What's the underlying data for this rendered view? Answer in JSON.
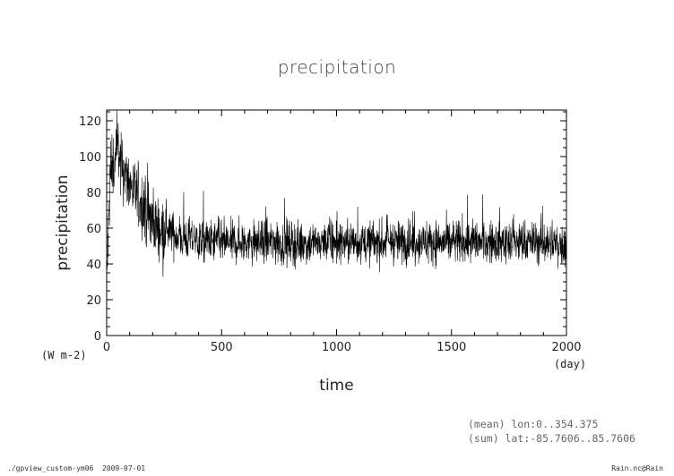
{
  "chart_data": {
    "type": "line",
    "title": "precipitation",
    "xlabel": "time",
    "ylabel": "precipitation",
    "x_unit": "(day)",
    "y_unit": "(W m-2)",
    "xlim": [
      0,
      2000
    ],
    "ylim": [
      0,
      126
    ],
    "xticks": [
      0,
      500,
      1000,
      1500,
      2000
    ],
    "yticks": [
      0,
      20,
      40,
      60,
      80,
      100,
      120
    ],
    "grid": false,
    "series": [
      {
        "color": "#000000",
        "x": [
          0,
          15,
          30,
          45,
          60,
          80,
          100,
          120,
          140,
          160,
          180,
          200,
          230,
          260,
          300,
          350,
          400,
          500,
          600,
          700,
          800,
          900,
          1000,
          1100,
          1200,
          1300,
          1400,
          1500,
          1600,
          1700,
          1800,
          1900,
          2000
        ],
        "y": [
          28,
          88,
          95,
          105,
          98,
          90,
          85,
          80,
          76,
          72,
          68,
          64,
          60,
          58,
          56,
          54,
          53,
          52,
          52,
          52,
          51,
          52,
          52,
          52,
          52,
          52,
          52,
          52,
          52,
          52,
          52,
          52,
          50
        ]
      }
    ]
  },
  "annotations": {
    "mean_line": "(mean) lon:0..354.375",
    "sum_line": "(sum) lat:-85.7606..85.7606"
  },
  "footer": {
    "left": "./gpview_custom-ym06  2009-07-01",
    "right": "Rain.nc@Rain"
  }
}
